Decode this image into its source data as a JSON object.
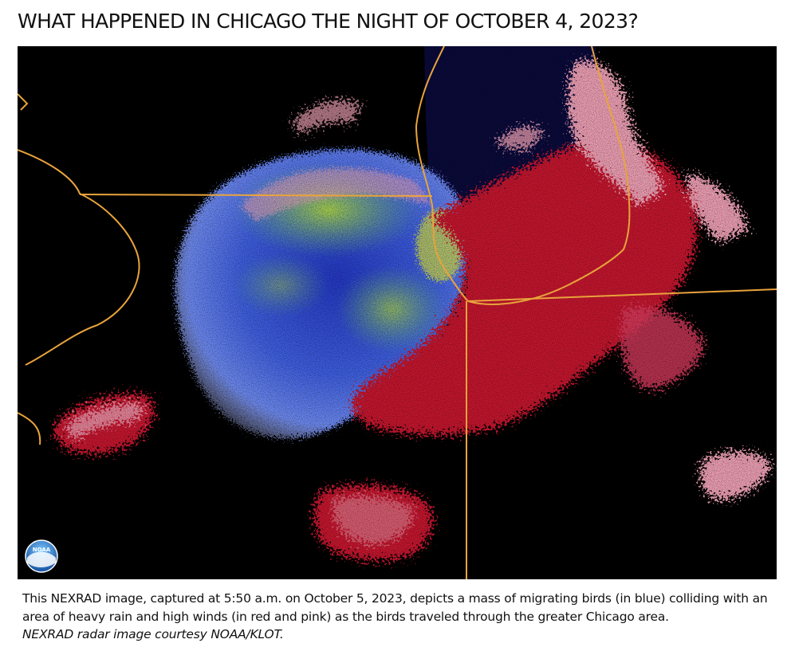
{
  "headline": "WHAT HAPPENED IN CHICAGO THE NIGHT OF OCTOBER 4, 2023?",
  "caption": {
    "text": "This NEXRAD image, captured at 5:50 a.m. on October 5, 2023, depicts a mass of migrating birds (in blue) colliding with an area of heavy rain and high winds (in red and pink) as the birds traveled through the greater Chicago area.",
    "credit": "NEXRAD radar image courtesy NOAA/KLOT."
  },
  "logo": {
    "text": "NOAA",
    "icon": "noaa-logo-icon"
  },
  "colors": {
    "background": "#000000",
    "lake": "#0a0a3a",
    "boundary": "#e8a33c",
    "birds_blue": "#2f4fd6",
    "birds_green": "#8fd13a",
    "rain_red": "#c4162e",
    "rain_pink": "#ec9fb3"
  }
}
